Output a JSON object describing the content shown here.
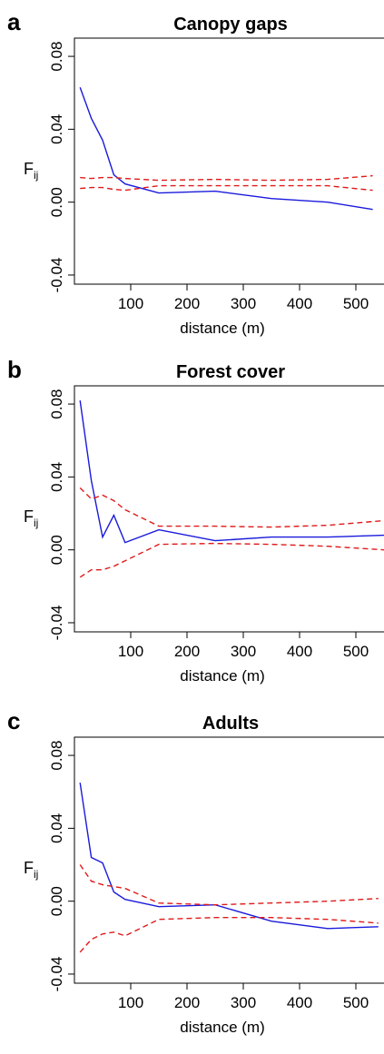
{
  "chart_data": [
    {
      "type": "line",
      "panel_label": "a",
      "title": "Canopy gaps",
      "xlabel": "distance (m)",
      "ylabel_main": "F",
      "ylabel_sub": "ij",
      "xlim": [
        0,
        550
      ],
      "ylim": [
        -0.045,
        0.09
      ],
      "x_ticks": [
        100,
        200,
        300,
        400,
        500
      ],
      "x_tick_labels": [
        "100",
        "200",
        "300",
        "400",
        "500"
      ],
      "y_ticks": [
        -0.04,
        0.0,
        0.04,
        0.08
      ],
      "y_tick_labels": [
        "-0.04",
        "0.00",
        "0.04",
        "0.08"
      ],
      "grid": false,
      "series": [
        {
          "role": "observed",
          "color": "#1a1adc",
          "style": "solid",
          "x": [
            10,
            30,
            50,
            70,
            90,
            150,
            250,
            350,
            450,
            530
          ],
          "y": [
            0.063,
            0.046,
            0.034,
            0.015,
            0.01,
            0.005,
            0.006,
            0.002,
            0.0,
            -0.004
          ]
        },
        {
          "role": "upper",
          "color": "#e01a1a",
          "style": "dashed",
          "x": [
            10,
            30,
            50,
            70,
            90,
            150,
            250,
            350,
            450,
            530
          ],
          "y": [
            0.0135,
            0.013,
            0.0135,
            0.0135,
            0.013,
            0.012,
            0.0125,
            0.012,
            0.0125,
            0.0145
          ]
        },
        {
          "role": "lower",
          "color": "#e01a1a",
          "style": "dashed",
          "x": [
            10,
            30,
            50,
            70,
            90,
            150,
            250,
            350,
            450,
            530
          ],
          "y": [
            0.0075,
            0.008,
            0.008,
            0.007,
            0.0065,
            0.009,
            0.009,
            0.009,
            0.009,
            0.0065
          ]
        }
      ]
    },
    {
      "type": "line",
      "panel_label": "b",
      "title": "Forest cover",
      "xlabel": "distance (m)",
      "ylabel_main": "F",
      "ylabel_sub": "ij",
      "xlim": [
        0,
        550
      ],
      "ylim": [
        -0.045,
        0.09
      ],
      "x_ticks": [
        100,
        200,
        300,
        400,
        500
      ],
      "x_tick_labels": [
        "100",
        "200",
        "300",
        "400",
        "500"
      ],
      "y_ticks": [
        -0.04,
        0.0,
        0.04,
        0.08
      ],
      "y_tick_labels": [
        "-0.04",
        "0.00",
        "0.04",
        "0.08"
      ],
      "grid": false,
      "series": [
        {
          "role": "observed",
          "color": "#1a1adc",
          "style": "solid",
          "x": [
            10,
            30,
            50,
            70,
            90,
            150,
            250,
            350,
            450,
            550
          ],
          "y": [
            0.082,
            0.038,
            0.007,
            0.019,
            0.004,
            0.011,
            0.005,
            0.007,
            0.007,
            0.008
          ]
        },
        {
          "role": "upper",
          "color": "#e01a1a",
          "style": "dashed",
          "x": [
            10,
            30,
            50,
            70,
            90,
            110,
            150,
            250,
            350,
            450,
            550
          ],
          "y": [
            0.034,
            0.028,
            0.03,
            0.027,
            0.022,
            0.019,
            0.013,
            0.013,
            0.0125,
            0.0135,
            0.016
          ]
        },
        {
          "role": "lower",
          "color": "#e01a1a",
          "style": "dashed",
          "x": [
            10,
            30,
            50,
            70,
            90,
            110,
            150,
            250,
            350,
            450,
            550
          ],
          "y": [
            -0.015,
            -0.011,
            -0.011,
            -0.009,
            -0.006,
            -0.003,
            0.003,
            0.0035,
            0.003,
            0.002,
            0.0
          ]
        }
      ]
    },
    {
      "type": "line",
      "panel_label": "c",
      "title": "Adults",
      "xlabel": "distance (m)",
      "ylabel_main": "F",
      "ylabel_sub": "ij",
      "xlim": [
        0,
        550
      ],
      "ylim": [
        -0.045,
        0.09
      ],
      "x_ticks": [
        100,
        200,
        300,
        400,
        500
      ],
      "x_tick_labels": [
        "100",
        "200",
        "300",
        "400",
        "500"
      ],
      "y_ticks": [
        -0.04,
        0.0,
        0.04,
        0.08
      ],
      "y_tick_labels": [
        "-0.04",
        "0.00",
        "0.04",
        "0.08"
      ],
      "grid": false,
      "series": [
        {
          "role": "observed",
          "color": "#1a1adc",
          "style": "solid",
          "x": [
            10,
            30,
            50,
            70,
            90,
            150,
            250,
            350,
            450,
            540
          ],
          "y": [
            0.065,
            0.024,
            0.021,
            0.005,
            0.001,
            -0.003,
            -0.002,
            -0.011,
            -0.015,
            -0.014
          ]
        },
        {
          "role": "upper",
          "color": "#e01a1a",
          "style": "dashed",
          "x": [
            10,
            30,
            50,
            70,
            90,
            150,
            250,
            350,
            450,
            540
          ],
          "y": [
            0.02,
            0.011,
            0.009,
            0.008,
            0.007,
            -0.001,
            -0.002,
            -0.001,
            0.0,
            0.0015
          ]
        },
        {
          "role": "lower",
          "color": "#e01a1a",
          "style": "dashed",
          "x": [
            10,
            30,
            50,
            70,
            90,
            150,
            250,
            350,
            450,
            540
          ],
          "y": [
            -0.028,
            -0.021,
            -0.018,
            -0.017,
            -0.019,
            -0.01,
            -0.009,
            -0.009,
            -0.01,
            -0.012
          ]
        }
      ]
    }
  ]
}
